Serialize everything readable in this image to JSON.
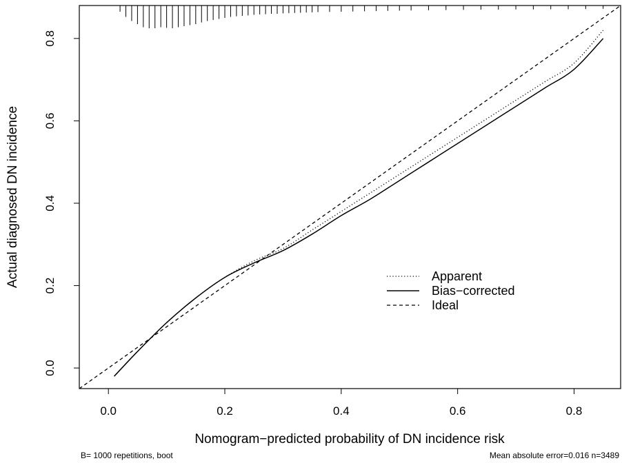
{
  "chart_data": {
    "type": "line",
    "xlabel": "Nomogram−predicted probability of DN incidence risk",
    "ylabel": "Actual diagnosed DN incidence",
    "xlim": [
      -0.05,
      0.88
    ],
    "ylim": [
      -0.05,
      0.88
    ],
    "x_ticks": [
      "0.0",
      "0.2",
      "0.4",
      "0.6",
      "0.8"
    ],
    "y_ticks": [
      "0.0",
      "0.2",
      "0.4",
      "0.6",
      "0.8"
    ],
    "legend_position": "center-right",
    "series": [
      {
        "name": "Apparent",
        "style": "dotted",
        "x": [
          0.01,
          0.05,
          0.1,
          0.15,
          0.2,
          0.25,
          0.3,
          0.35,
          0.4,
          0.45,
          0.5,
          0.55,
          0.6,
          0.65,
          0.7,
          0.75,
          0.8,
          0.85
        ],
        "y": [
          -0.02,
          0.04,
          0.11,
          0.17,
          0.22,
          0.26,
          0.29,
          0.335,
          0.38,
          0.425,
          0.47,
          0.515,
          0.56,
          0.605,
          0.65,
          0.695,
          0.74,
          0.82
        ]
      },
      {
        "name": "Bias−corrected",
        "style": "solid",
        "x": [
          0.01,
          0.05,
          0.1,
          0.15,
          0.2,
          0.25,
          0.3,
          0.35,
          0.4,
          0.45,
          0.5,
          0.55,
          0.6,
          0.65,
          0.7,
          0.75,
          0.8,
          0.85
        ],
        "y": [
          -0.02,
          0.04,
          0.11,
          0.17,
          0.22,
          0.255,
          0.285,
          0.325,
          0.37,
          0.41,
          0.455,
          0.5,
          0.545,
          0.59,
          0.635,
          0.68,
          0.725,
          0.8
        ]
      },
      {
        "name": "Ideal",
        "style": "dashed",
        "x": [
          -0.05,
          0.88
        ],
        "y": [
          -0.05,
          0.88
        ]
      }
    ],
    "rug": {
      "x": [
        0.02,
        0.03,
        0.04,
        0.05,
        0.06,
        0.07,
        0.08,
        0.09,
        0.1,
        0.11,
        0.12,
        0.13,
        0.14,
        0.15,
        0.16,
        0.17,
        0.18,
        0.19,
        0.2,
        0.21,
        0.22,
        0.23,
        0.24,
        0.25,
        0.26,
        0.27,
        0.28,
        0.29,
        0.3,
        0.31,
        0.32,
        0.33,
        0.34,
        0.35,
        0.36,
        0.38,
        0.4,
        0.42,
        0.44,
        0.46,
        0.48,
        0.5,
        0.52,
        0.55,
        0.58,
        0.61,
        0.64,
        0.67,
        0.7,
        0.73,
        0.76,
        0.79,
        0.82,
        0.85
      ],
      "counts": [
        0.2,
        0.45,
        0.65,
        0.8,
        0.95,
        1.0,
        1.0,
        0.95,
        0.98,
        1.0,
        0.95,
        0.9,
        0.85,
        0.8,
        0.72,
        0.65,
        0.6,
        0.55,
        0.5,
        0.45,
        0.42,
        0.4,
        0.38,
        0.35,
        0.33,
        0.32,
        0.3,
        0.3,
        0.28,
        0.27,
        0.26,
        0.25,
        0.24,
        0.23,
        0.22,
        0.21,
        0.2,
        0.19,
        0.18,
        0.17,
        0.16,
        0.15,
        0.14,
        0.13,
        0.12,
        0.11,
        0.1,
        0.1,
        0.09,
        0.09,
        0.08,
        0.08,
        0.07,
        0.06
      ]
    }
  },
  "footnotes": {
    "left": "B= 1000 repetitions, boot",
    "right": "Mean absolute error=0.016 n=3489"
  }
}
